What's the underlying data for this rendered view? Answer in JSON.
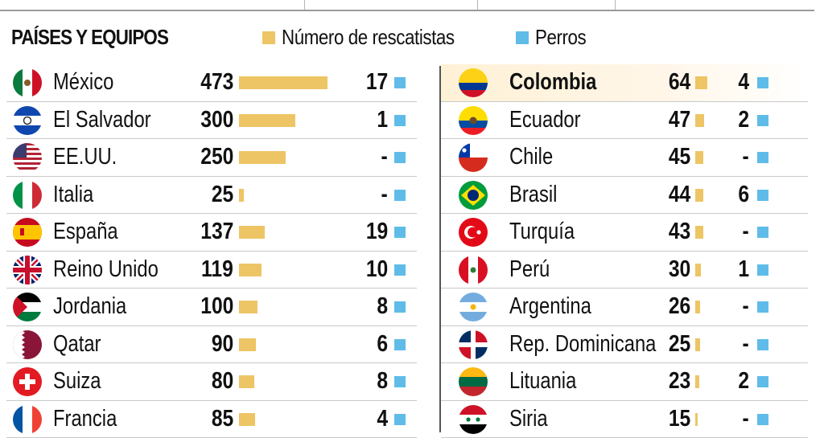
{
  "header": {
    "title": "PAÍSES Y EQUIPOS"
  },
  "legend": [
    {
      "label": "Número de rescatistas",
      "color": "#EEC565"
    },
    {
      "label": "Perros",
      "color": "#5FBCE8"
    }
  ],
  "colors": {
    "rescuers": "#EEC565",
    "dogs": "#5FBCE8",
    "highlight": "#FFF1D6"
  },
  "chart_data": {
    "type": "bar",
    "series": [
      {
        "name": "Número de rescatistas"
      },
      {
        "name": "Perros"
      }
    ],
    "columns": [
      {
        "rows": [
          {
            "flag": "mexico-flag-icon",
            "country": "México",
            "rescuers": 473,
            "rescuers_label": "473",
            "dogs_label": "17"
          },
          {
            "flag": "el-salvador-flag-icon",
            "country": "El Salvador",
            "rescuers": 300,
            "rescuers_label": "300",
            "dogs_label": "1"
          },
          {
            "flag": "usa-flag-icon",
            "country": "EE.UU.",
            "rescuers": 250,
            "rescuers_label": "250",
            "dogs_label": "-"
          },
          {
            "flag": "italy-flag-icon",
            "country": "Italia",
            "rescuers": 25,
            "rescuers_label": "25",
            "dogs_label": "-"
          },
          {
            "flag": "spain-flag-icon",
            "country": "España",
            "rescuers": 137,
            "rescuers_label": "137",
            "dogs_label": "19"
          },
          {
            "flag": "uk-flag-icon",
            "country": "Reino Unido",
            "rescuers": 119,
            "rescuers_label": "119",
            "dogs_label": "10"
          },
          {
            "flag": "jordan-flag-icon",
            "country": "Jordania",
            "rescuers": 100,
            "rescuers_label": "100",
            "dogs_label": "8"
          },
          {
            "flag": "qatar-flag-icon",
            "country": "Qatar",
            "rescuers": 90,
            "rescuers_label": "90",
            "dogs_label": "6"
          },
          {
            "flag": "switzerland-flag-icon",
            "country": "Suiza",
            "rescuers": 80,
            "rescuers_label": "80",
            "dogs_label": "8"
          },
          {
            "flag": "france-flag-icon",
            "country": "Francia",
            "rescuers": 85,
            "rescuers_label": "85",
            "dogs_label": "4"
          }
        ]
      },
      {
        "rows": [
          {
            "flag": "colombia-flag-icon",
            "country": "Colombia",
            "rescuers": 64,
            "rescuers_label": "64",
            "dogs_label": "4",
            "highlight": true
          },
          {
            "flag": "ecuador-flag-icon",
            "country": "Ecuador",
            "rescuers": 47,
            "rescuers_label": "47",
            "dogs_label": "2"
          },
          {
            "flag": "chile-flag-icon",
            "country": "Chile",
            "rescuers": 45,
            "rescuers_label": "45",
            "dogs_label": "-"
          },
          {
            "flag": "brazil-flag-icon",
            "country": "Brasil",
            "rescuers": 44,
            "rescuers_label": "44",
            "dogs_label": "6"
          },
          {
            "flag": "turkey-flag-icon",
            "country": "Turquía",
            "rescuers": 43,
            "rescuers_label": "43",
            "dogs_label": "-"
          },
          {
            "flag": "peru-flag-icon",
            "country": "Perú",
            "rescuers": 30,
            "rescuers_label": "30",
            "dogs_label": "1"
          },
          {
            "flag": "argentina-flag-icon",
            "country": "Argentina",
            "rescuers": 26,
            "rescuers_label": "26",
            "dogs_label": "-"
          },
          {
            "flag": "dominican-republic-flag-icon",
            "country": "Rep. Dominicana",
            "rescuers": 25,
            "rescuers_label": "25",
            "dogs_label": "-"
          },
          {
            "flag": "lithuania-flag-icon",
            "country": "Lituania",
            "rescuers": 23,
            "rescuers_label": "23",
            "dogs_label": "2"
          },
          {
            "flag": "syria-flag-icon",
            "country": "Siria",
            "rescuers": 15,
            "rescuers_label": "15",
            "dogs_label": "-"
          }
        ]
      }
    ]
  }
}
